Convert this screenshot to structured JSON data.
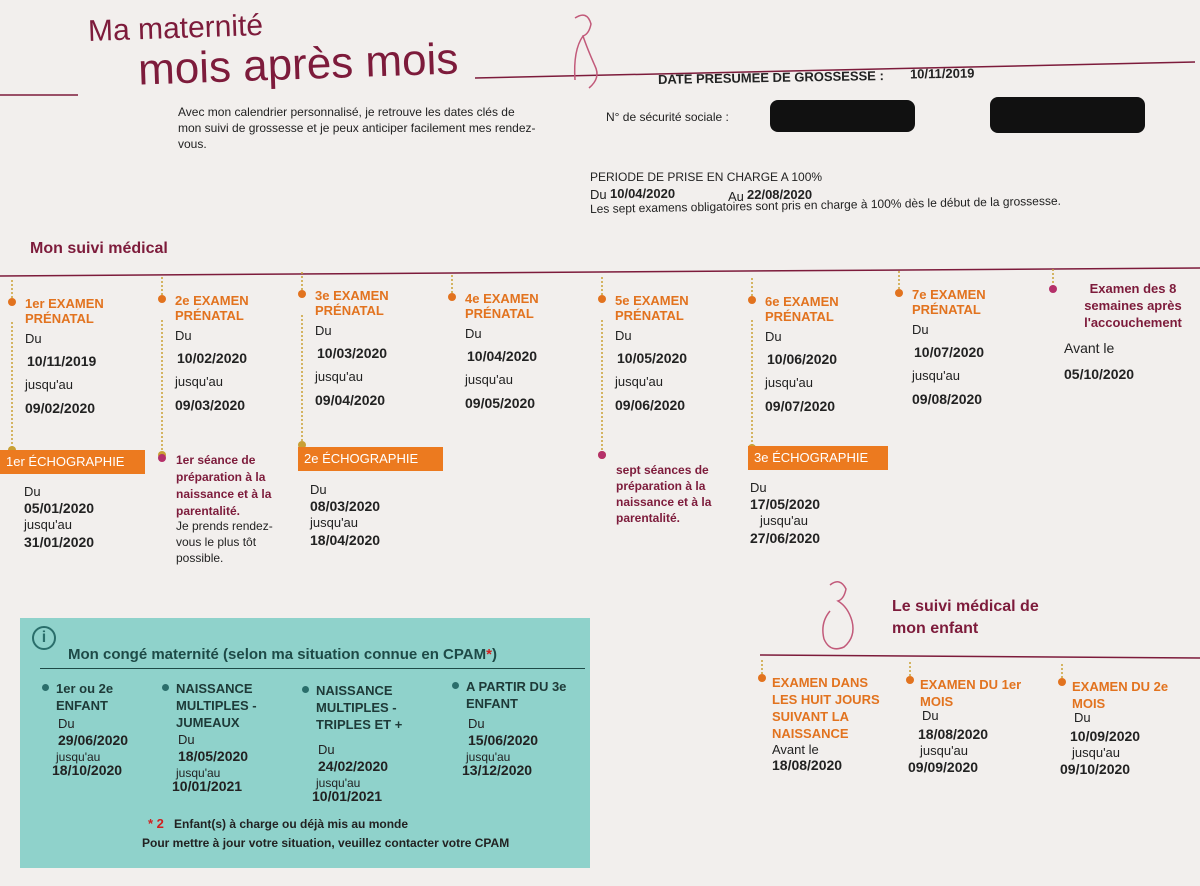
{
  "header": {
    "title_small": "Ma maternité",
    "title_large": "mois après mois",
    "date_label": "DATE PRESUMEE DE GROSSESSE :",
    "date": "10/11/2019",
    "intro": "Avec mon calendrier personnalisé, je retrouve les dates clés de mon suivi de grossesse et je peux anticiper facilement mes rendez-vous.",
    "ss_label": "N° de sécurité sociale :"
  },
  "coverage": {
    "title": "PERIODE DE PRISE EN CHARGE A 100%",
    "from_label": "Du",
    "from": "10/04/2020",
    "to_label": "Au",
    "to": "22/08/2020",
    "note": "Les sept examens obligatoires sont pris en charge à 100% dès le début de la grossesse."
  },
  "medical": {
    "title": "Mon suivi médical",
    "exams": [
      {
        "name": "1er EXAMEN PRÉNATAL",
        "from_label": "Du",
        "from": "10/11/2019",
        "to_label": "jusqu'au",
        "to": "09/02/2020"
      },
      {
        "name": "2e EXAMEN PRÉNATAL",
        "from_label": "Du",
        "from": "10/02/2020",
        "to_label": "jusqu'au",
        "to": "09/03/2020"
      },
      {
        "name": "3e EXAMEN PRÉNATAL",
        "from_label": "Du",
        "from": "10/03/2020",
        "to_label": "jusqu'au",
        "to": "09/04/2020"
      },
      {
        "name": "4e EXAMEN PRÉNATAL",
        "from_label": "Du",
        "from": "10/04/2020",
        "to_label": "jusqu'au",
        "to": "09/05/2020"
      },
      {
        "name": "5e EXAMEN PRÉNATAL",
        "from_label": "Du",
        "from": "10/05/2020",
        "to_label": "jusqu'au",
        "to": "09/06/2020"
      },
      {
        "name": "6e EXAMEN PRÉNATAL",
        "from_label": "Du",
        "from": "10/06/2020",
        "to_label": "jusqu'au",
        "to": "09/07/2020"
      },
      {
        "name": "7e EXAMEN PRÉNATAL",
        "from_label": "Du",
        "from": "10/07/2020",
        "to_label": "jusqu'au",
        "to": "09/08/2020"
      }
    ],
    "postnatal": {
      "name": "Examen des 8 semaines après l'accouchement",
      "before_label": "Avant le",
      "date": "05/10/2020"
    },
    "echographies": [
      {
        "name": "1er ÉCHOGRAPHIE",
        "from_label": "Du",
        "from": "05/01/2020",
        "to_label": "jusqu'au",
        "to": "31/01/2020"
      },
      {
        "name": "2e ÉCHOGRAPHIE",
        "from_label": "Du",
        "from": "08/03/2020",
        "to_label": "jusqu'au",
        "to": "18/04/2020"
      },
      {
        "name": "3e ÉCHOGRAPHIE",
        "from_label": "Du",
        "from": "17/05/2020",
        "to_label": "jusqu'au",
        "to": "27/06/2020"
      }
    ],
    "preparation": [
      {
        "name": "1er séance de préparation à la naissance et à la parentalité.",
        "note": "Je prends rendez-vous le plus tôt possible."
      },
      {
        "name": "sept séances de préparation à la naissance et à la parentalité."
      }
    ]
  },
  "child": {
    "title": "Le suivi médical de mon enfant",
    "exams": [
      {
        "name": "EXAMEN DANS LES HUIT JOURS SUIVANT LA NAISSANCE",
        "before_label": "Avant le",
        "date": "18/08/2020"
      },
      {
        "name": "EXAMEN DU 1er MOIS",
        "from_label": "Du",
        "from": "18/08/2020",
        "to_label": "jusqu'au",
        "to": "09/09/2020"
      },
      {
        "name": "EXAMEN DU 2e MOIS",
        "from_label": "Du",
        "from": "10/09/2020",
        "to_label": "jusqu'au",
        "to": "09/10/2020"
      }
    ]
  },
  "leave": {
    "icon": "i",
    "title": "Mon congé maternité (selon ma situation connue en CPAM",
    "star": "*",
    "title_end": ")",
    "items": [
      {
        "name": "1er ou 2e ENFANT",
        "from_label": "Du",
        "from": "29/06/2020",
        "to_label": "jusqu'au",
        "to": "18/10/2020"
      },
      {
        "name": "NAISSANCE MULTIPLES - JUMEAUX",
        "from_label": "Du",
        "from": "18/05/2020",
        "to_label": "jusqu'au",
        "to": "10/01/2021"
      },
      {
        "name": "NAISSANCE MULTIPLES - TRIPLES ET +",
        "from_label": "Du",
        "from": "24/02/2020",
        "to_label": "jusqu'au",
        "to": "10/01/2021"
      },
      {
        "name": "A PARTIR DU 3e ENFANT",
        "from_label": "Du",
        "from": "15/06/2020",
        "to_label": "jusqu'au",
        "to": "13/12/2020"
      }
    ],
    "footnote_mark": "* 2",
    "footnote": "Enfant(s) à charge ou déjà mis au monde",
    "contact": "Pour mettre à jour votre situation, veuillez contacter votre CPAM"
  }
}
